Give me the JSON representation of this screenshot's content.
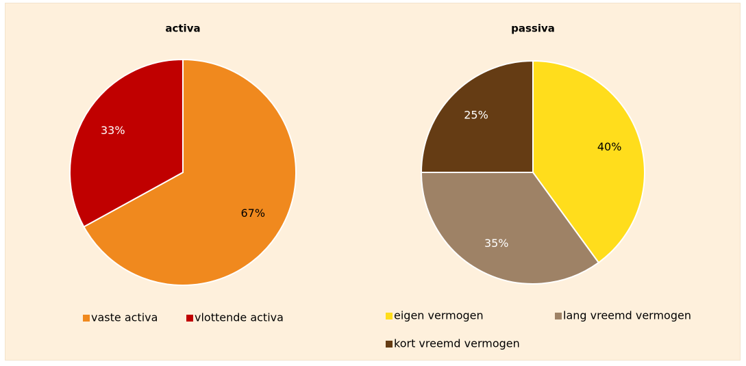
{
  "chart_data": [
    {
      "type": "pie",
      "title": "activa",
      "categories": [
        "vaste activa",
        "vlottende activa"
      ],
      "values": [
        67,
        33
      ],
      "value_labels": [
        "67%",
        "33%"
      ],
      "colors": [
        "#f0891e",
        "#c00000"
      ]
    },
    {
      "type": "pie",
      "title": "passiva",
      "categories": [
        "eigen vermogen",
        "lang vreemd vermogen",
        "kort vreemd vermogen"
      ],
      "values": [
        40,
        35,
        25
      ],
      "value_labels": [
        "40%",
        "35%",
        "25%"
      ],
      "colors": [
        "#ffdd1c",
        "#9e8266",
        "#653c14"
      ]
    }
  ]
}
